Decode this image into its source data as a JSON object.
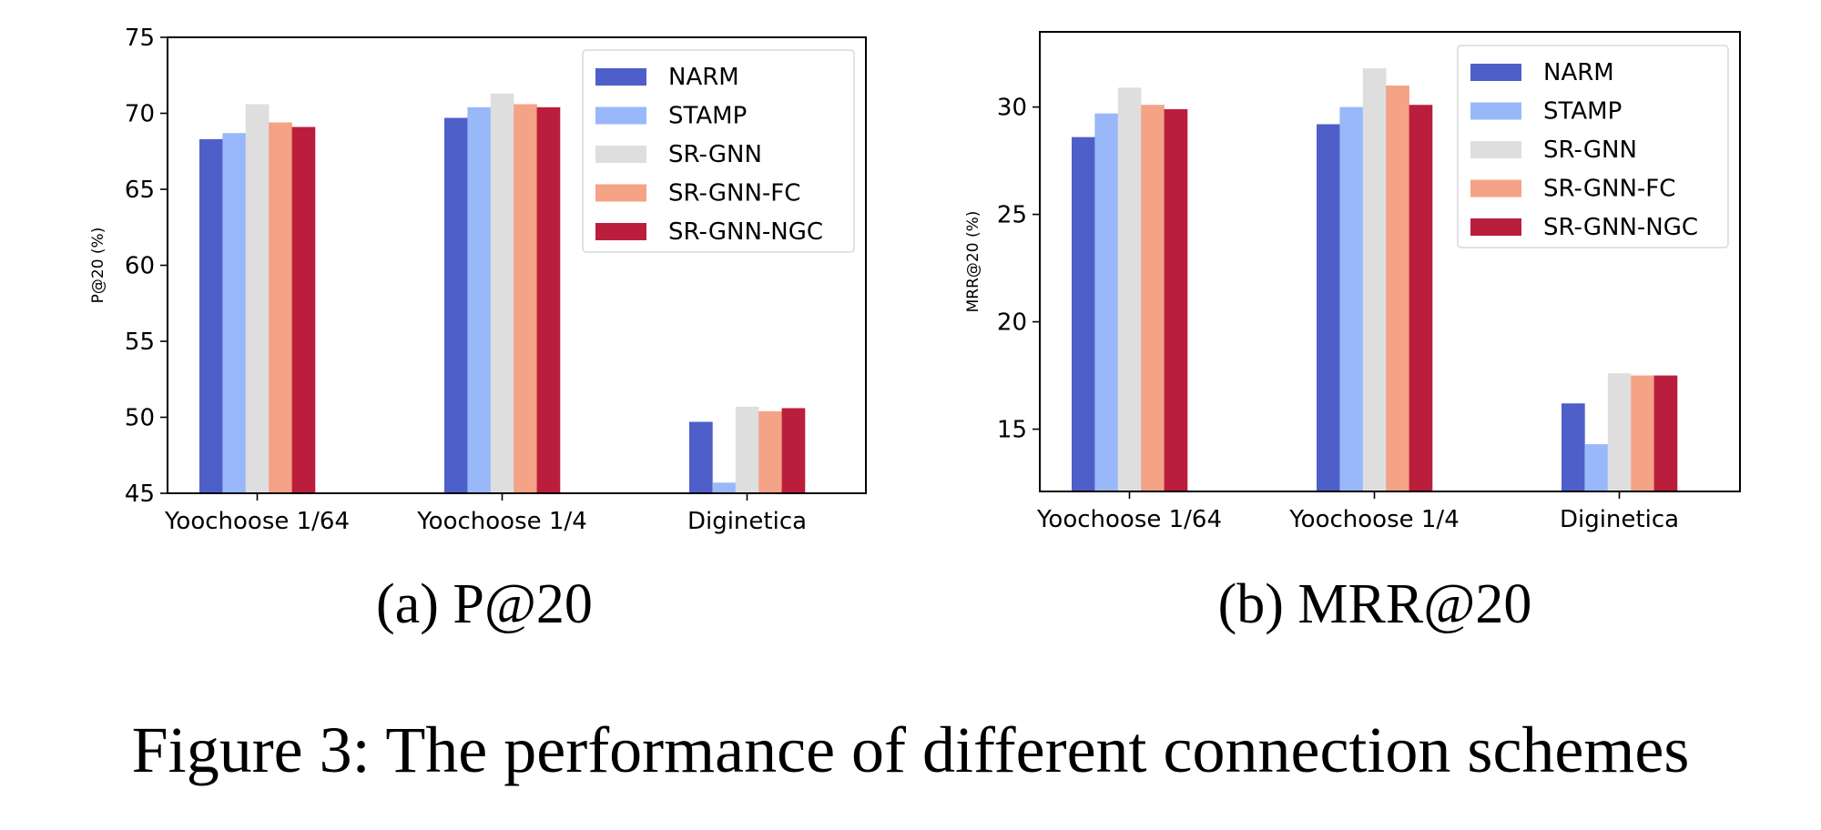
{
  "figure": {
    "caption": "Figure 3: The performance of different connection schemes"
  },
  "chart_data": [
    {
      "type": "bar",
      "subtitle": "(a) P@20",
      "ylabel": "P@20 (%)",
      "xlabel": "",
      "ylim": [
        45,
        75
      ],
      "yticks": [
        45,
        50,
        55,
        60,
        65,
        70,
        75
      ],
      "categories": [
        "Yoochoose 1/64",
        "Yoochoose 1/4",
        "Diginetica"
      ],
      "legend_position": "top-right",
      "series": [
        {
          "name": "NARM",
          "color": "#4f5fc9",
          "values": [
            68.3,
            69.7,
            49.7
          ]
        },
        {
          "name": "STAMP",
          "color": "#99b8fa",
          "values": [
            68.7,
            70.4,
            45.7
          ]
        },
        {
          "name": "SR-GNN",
          "color": "#dedede",
          "values": [
            70.6,
            71.3,
            50.7
          ]
        },
        {
          "name": "SR-GNN-FC",
          "color": "#f4a386",
          "values": [
            69.4,
            70.6,
            50.4
          ]
        },
        {
          "name": "SR-GNN-NGC",
          "color": "#bb1e3c",
          "values": [
            69.1,
            70.4,
            50.6
          ]
        }
      ]
    },
    {
      "type": "bar",
      "subtitle": "(b) MRR@20",
      "ylabel": "MRR@20 (%)",
      "xlabel": "",
      "ylim": [
        12.1,
        33.5
      ],
      "yticks": [
        15,
        20,
        25,
        30
      ],
      "categories": [
        "Yoochoose 1/64",
        "Yoochoose 1/4",
        "Diginetica"
      ],
      "legend_position": "top-right",
      "series": [
        {
          "name": "NARM",
          "color": "#4f5fc9",
          "values": [
            28.6,
            29.2,
            16.2
          ]
        },
        {
          "name": "STAMP",
          "color": "#99b8fa",
          "values": [
            29.7,
            30.0,
            14.3
          ]
        },
        {
          "name": "SR-GNN",
          "color": "#dedede",
          "values": [
            30.9,
            31.8,
            17.6
          ]
        },
        {
          "name": "SR-GNN-FC",
          "color": "#f4a386",
          "values": [
            30.1,
            31.0,
            17.5
          ]
        },
        {
          "name": "SR-GNN-NGC",
          "color": "#bb1e3c",
          "values": [
            29.9,
            30.1,
            17.5
          ]
        }
      ]
    }
  ]
}
